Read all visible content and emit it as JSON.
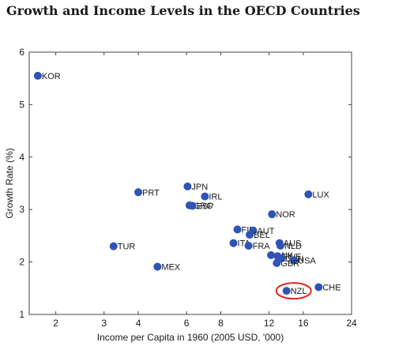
{
  "chart_data": {
    "type": "scatter",
    "title": "Growth and Income Levels in the OECD Countries",
    "xlabel": "Income per Capita in 1960 (2005 USD, '000)",
    "ylabel": "Growth Rate (%)",
    "x_scale": "log",
    "xlim": [
      1.6,
      24
    ],
    "ylim": [
      1,
      6
    ],
    "x_ticks": [
      2,
      3,
      4,
      6,
      8,
      12,
      16,
      24
    ],
    "y_ticks": [
      1,
      2,
      3,
      4,
      5,
      6
    ],
    "grid": false,
    "point_color": "#2f54b5",
    "highlight_color": "#e0261b",
    "points": [
      {
        "label": "KOR",
        "x": 1.72,
        "y": 5.55
      },
      {
        "label": "PRT",
        "x": 4.0,
        "y": 3.33
      },
      {
        "label": "JPN",
        "x": 6.05,
        "y": 3.44
      },
      {
        "label": "IRL",
        "x": 7.0,
        "y": 3.25
      },
      {
        "label": "GRC",
        "x": 6.15,
        "y": 3.08
      },
      {
        "label": "ESP",
        "x": 6.3,
        "y": 3.07
      },
      {
        "label": "LUX",
        "x": 16.7,
        "y": 3.29
      },
      {
        "label": "NOR",
        "x": 12.3,
        "y": 2.91
      },
      {
        "label": "TUR",
        "x": 3.25,
        "y": 2.3
      },
      {
        "label": "MEX",
        "x": 4.7,
        "y": 1.91
      },
      {
        "label": "FIN",
        "x": 9.2,
        "y": 2.62
      },
      {
        "label": "AUT",
        "x": 10.5,
        "y": 2.6
      },
      {
        "label": "BEL",
        "x": 10.2,
        "y": 2.52
      },
      {
        "label": "ITA",
        "x": 8.9,
        "y": 2.36
      },
      {
        "label": "FRA",
        "x": 10.1,
        "y": 2.31
      },
      {
        "label": "AUS",
        "x": 13.1,
        "y": 2.36
      },
      {
        "label": "NLD",
        "x": 13.2,
        "y": 2.31
      },
      {
        "label": "DNK",
        "x": 12.2,
        "y": 2.13
      },
      {
        "label": "SWE",
        "x": 12.9,
        "y": 2.11
      },
      {
        "label": "CAN",
        "x": 13.3,
        "y": 2.07
      },
      {
        "label": "USA",
        "x": 14.8,
        "y": 2.03
      },
      {
        "label": "GBR",
        "x": 12.8,
        "y": 1.98
      },
      {
        "label": "CHE",
        "x": 18.2,
        "y": 1.52
      },
      {
        "label": "NZL",
        "x": 13.9,
        "y": 1.45,
        "highlight": true
      }
    ]
  }
}
